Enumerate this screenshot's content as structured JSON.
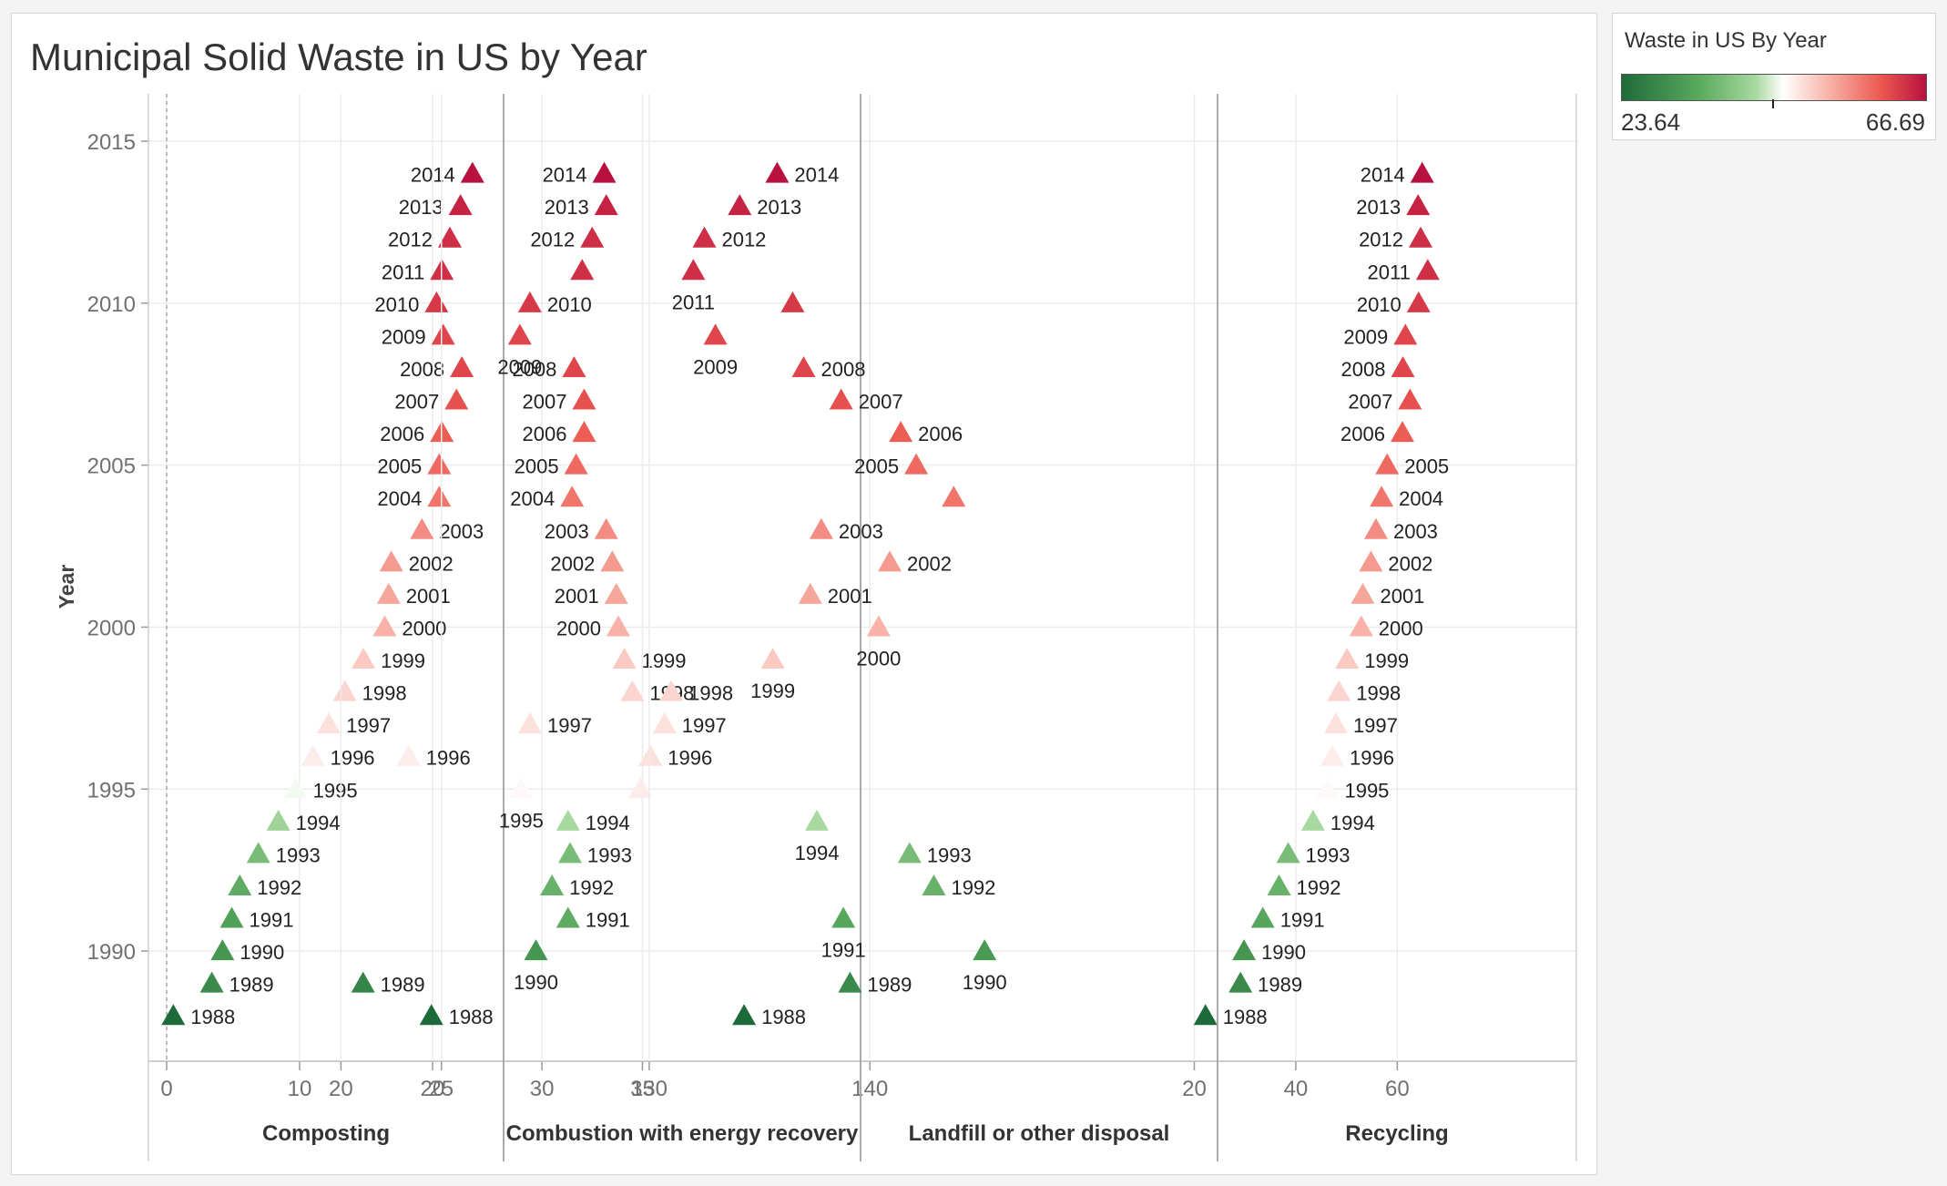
{
  "title": "Municipal Solid Waste in US by Year",
  "legend": {
    "title": "Waste in US By Year",
    "min_label": "23.64",
    "max_label": "66.69"
  },
  "colors": {
    "low": "#1e6b3a",
    "mid": "#ffffff",
    "high": "#b8103f"
  },
  "chart_data": {
    "type": "scatter",
    "marker": "triangle",
    "y_axis": {
      "label": "Year",
      "range": [
        1986.6,
        2015.9
      ],
      "ticks": [
        1990,
        1995,
        2000,
        2005,
        2010,
        2015
      ]
    },
    "color_scale": {
      "min": 23.64,
      "max": 66.69
    },
    "grid": true,
    "panels": [
      {
        "name": "Composting",
        "x_ticks": [
          0,
          10,
          20
        ],
        "zero_line": true,
        "points": [
          {
            "year": 1988,
            "x": 0.5,
            "c": 23.64
          },
          {
            "year": 1989,
            "x": 3.4,
            "c": 29
          },
          {
            "year": 1990,
            "x": 4.2,
            "c": 31
          },
          {
            "year": 1991,
            "x": 4.9,
            "c": 33
          },
          {
            "year": 1992,
            "x": 5.5,
            "c": 35
          },
          {
            "year": 1993,
            "x": 6.9,
            "c": 38
          },
          {
            "year": 1994,
            "x": 8.4,
            "c": 42
          },
          {
            "year": 1995,
            "x": 9.7,
            "c": 46
          },
          {
            "year": 1996,
            "x": 11.0,
            "c": 48
          },
          {
            "year": 1997,
            "x": 12.2,
            "c": 49
          },
          {
            "year": 1998,
            "x": 13.4,
            "c": 50
          },
          {
            "year": 1999,
            "x": 14.8,
            "c": 51
          },
          {
            "year": 2000,
            "x": 16.4,
            "c": 53
          },
          {
            "year": 2001,
            "x": 16.7,
            "c": 54
          },
          {
            "year": 2002,
            "x": 16.9,
            "c": 55
          },
          {
            "year": 2003,
            "x": 19.2,
            "c": 56
          },
          {
            "year": 2004,
            "x": 20.5,
            "c": 58
          },
          {
            "year": 2005,
            "x": 20.5,
            "c": 59
          },
          {
            "year": 2006,
            "x": 20.7,
            "c": 60
          },
          {
            "year": 2007,
            "x": 21.8,
            "c": 61
          },
          {
            "year": 2008,
            "x": 22.2,
            "c": 62
          },
          {
            "year": 2009,
            "x": 20.8,
            "c": 62
          },
          {
            "year": 2010,
            "x": 20.3,
            "c": 63
          },
          {
            "year": 2011,
            "x": 20.7,
            "c": 64
          },
          {
            "year": 2012,
            "x": 21.3,
            "c": 64
          },
          {
            "year": 2013,
            "x": 22.1,
            "c": 65
          },
          {
            "year": 2014,
            "x": 23.0,
            "c": 66.69
          }
        ]
      },
      {
        "name": "Combustion with energy recovery",
        "x_ticks": [
          20,
          25,
          30,
          35
        ],
        "points": [
          {
            "year": 1988,
            "x": 24.5,
            "c": 23.64
          },
          {
            "year": 1989,
            "x": 21.1,
            "c": 28
          },
          {
            "year": 1990,
            "x": 29.7,
            "c": 31
          },
          {
            "year": 1991,
            "x": 31.3,
            "c": 35
          },
          {
            "year": 1992,
            "x": 30.5,
            "c": 36
          },
          {
            "year": 1993,
            "x": 31.4,
            "c": 38
          },
          {
            "year": 1994,
            "x": 31.3,
            "c": 43
          },
          {
            "year": 1995,
            "x": 34.9,
            "c": 48
          },
          {
            "year": 1996,
            "x": 35.4,
            "c": 49
          },
          {
            "year": 1997,
            "x": 36.1,
            "c": 49
          },
          {
            "year": 1998,
            "x": 34.5,
            "c": 50
          },
          {
            "year": 1999,
            "x": 34.1,
            "c": 51
          },
          {
            "year": 2000,
            "x": 33.8,
            "c": 53
          },
          {
            "year": 2001,
            "x": 33.7,
            "c": 54
          },
          {
            "year": 2002,
            "x": 33.5,
            "c": 55
          },
          {
            "year": 2003,
            "x": 33.2,
            "c": 56
          },
          {
            "year": 2004,
            "x": 31.5,
            "c": 58
          },
          {
            "year": 2005,
            "x": 31.7,
            "c": 59
          },
          {
            "year": 2006,
            "x": 32.1,
            "c": 60
          },
          {
            "year": 2007,
            "x": 32.1,
            "c": 61
          },
          {
            "year": 2008,
            "x": 31.6,
            "c": 62
          },
          {
            "year": 2009,
            "x": 28.9,
            "c": 62
          },
          {
            "year": 2010,
            "x": 29.4,
            "c": 63
          },
          {
            "year": 2011,
            "x": 32.0,
            "c": 64
          },
          {
            "year": 2012,
            "x": 32.5,
            "c": 64
          },
          {
            "year": 2013,
            "x": 33.2,
            "c": 65
          },
          {
            "year": 2014,
            "x": 33.1,
            "c": 66.69
          }
        ]
      },
      {
        "name": "Landfill or other disposal",
        "x_ticks": [
          130,
          140
        ],
        "points": [
          {
            "year": 1988,
            "x": 134.3,
            "c": 23.64
          },
          {
            "year": 1989,
            "x": 139.1,
            "c": 29
          },
          {
            "year": 1990,
            "x": 145.2,
            "c": 32
          },
          {
            "year": 1991,
            "x": 138.8,
            "c": 34
          },
          {
            "year": 1992,
            "x": 142.9,
            "c": 36
          },
          {
            "year": 1993,
            "x": 141.8,
            "c": 38
          },
          {
            "year": 1994,
            "x": 137.6,
            "c": 43
          },
          {
            "year": 1995,
            "x": 124.2,
            "c": 47
          },
          {
            "year": 1996,
            "x": 119.1,
            "c": 48
          },
          {
            "year": 1997,
            "x": 124.6,
            "c": 49
          },
          {
            "year": 1998,
            "x": 131.0,
            "c": 50
          },
          {
            "year": 1999,
            "x": 135.6,
            "c": 51
          },
          {
            "year": 2000,
            "x": 140.4,
            "c": 53
          },
          {
            "year": 2001,
            "x": 137.3,
            "c": 54
          },
          {
            "year": 2002,
            "x": 140.9,
            "c": 55
          },
          {
            "year": 2003,
            "x": 137.8,
            "c": 56
          },
          {
            "year": 2004,
            "x": 143.8,
            "c": 58
          },
          {
            "year": 2005,
            "x": 142.1,
            "c": 59
          },
          {
            "year": 2006,
            "x": 141.4,
            "c": 60
          },
          {
            "year": 2007,
            "x": 138.7,
            "c": 61
          },
          {
            "year": 2008,
            "x": 137.0,
            "c": 62
          },
          {
            "year": 2009,
            "x": 133.0,
            "c": 62
          },
          {
            "year": 2010,
            "x": 136.5,
            "c": 63
          },
          {
            "year": 2011,
            "x": 132.0,
            "c": 64
          },
          {
            "year": 2012,
            "x": 132.5,
            "c": 64
          },
          {
            "year": 2013,
            "x": 134.1,
            "c": 65
          },
          {
            "year": 2014,
            "x": 135.8,
            "c": 66.69
          }
        ]
      },
      {
        "name": "Recycling",
        "x_ticks": [
          20,
          40,
          60
        ],
        "points": [
          {
            "year": 1988,
            "x": 22.2,
            "c": 23.64
          },
          {
            "year": 1989,
            "x": 29.1,
            "c": 29
          },
          {
            "year": 1990,
            "x": 29.8,
            "c": 31
          },
          {
            "year": 1991,
            "x": 33.5,
            "c": 34
          },
          {
            "year": 1992,
            "x": 36.7,
            "c": 36
          },
          {
            "year": 1993,
            "x": 38.5,
            "c": 38
          },
          {
            "year": 1994,
            "x": 43.4,
            "c": 43
          },
          {
            "year": 1995,
            "x": 46.2,
            "c": 47
          },
          {
            "year": 1996,
            "x": 47.2,
            "c": 48
          },
          {
            "year": 1997,
            "x": 47.9,
            "c": 49
          },
          {
            "year": 1998,
            "x": 48.5,
            "c": 50
          },
          {
            "year": 1999,
            "x": 50.1,
            "c": 51
          },
          {
            "year": 2000,
            "x": 52.9,
            "c": 53
          },
          {
            "year": 2001,
            "x": 53.2,
            "c": 54
          },
          {
            "year": 2002,
            "x": 54.8,
            "c": 55
          },
          {
            "year": 2003,
            "x": 55.8,
            "c": 56
          },
          {
            "year": 2004,
            "x": 56.9,
            "c": 58
          },
          {
            "year": 2005,
            "x": 58.0,
            "c": 59
          },
          {
            "year": 2006,
            "x": 61.0,
            "c": 60
          },
          {
            "year": 2007,
            "x": 62.5,
            "c": 61
          },
          {
            "year": 2008,
            "x": 61.1,
            "c": 62
          },
          {
            "year": 2009,
            "x": 61.6,
            "c": 62
          },
          {
            "year": 2010,
            "x": 64.2,
            "c": 63
          },
          {
            "year": 2011,
            "x": 66.0,
            "c": 64
          },
          {
            "year": 2012,
            "x": 64.6,
            "c": 64
          },
          {
            "year": 2013,
            "x": 64.1,
            "c": 65
          },
          {
            "year": 2014,
            "x": 64.9,
            "c": 66.69
          }
        ]
      }
    ]
  }
}
